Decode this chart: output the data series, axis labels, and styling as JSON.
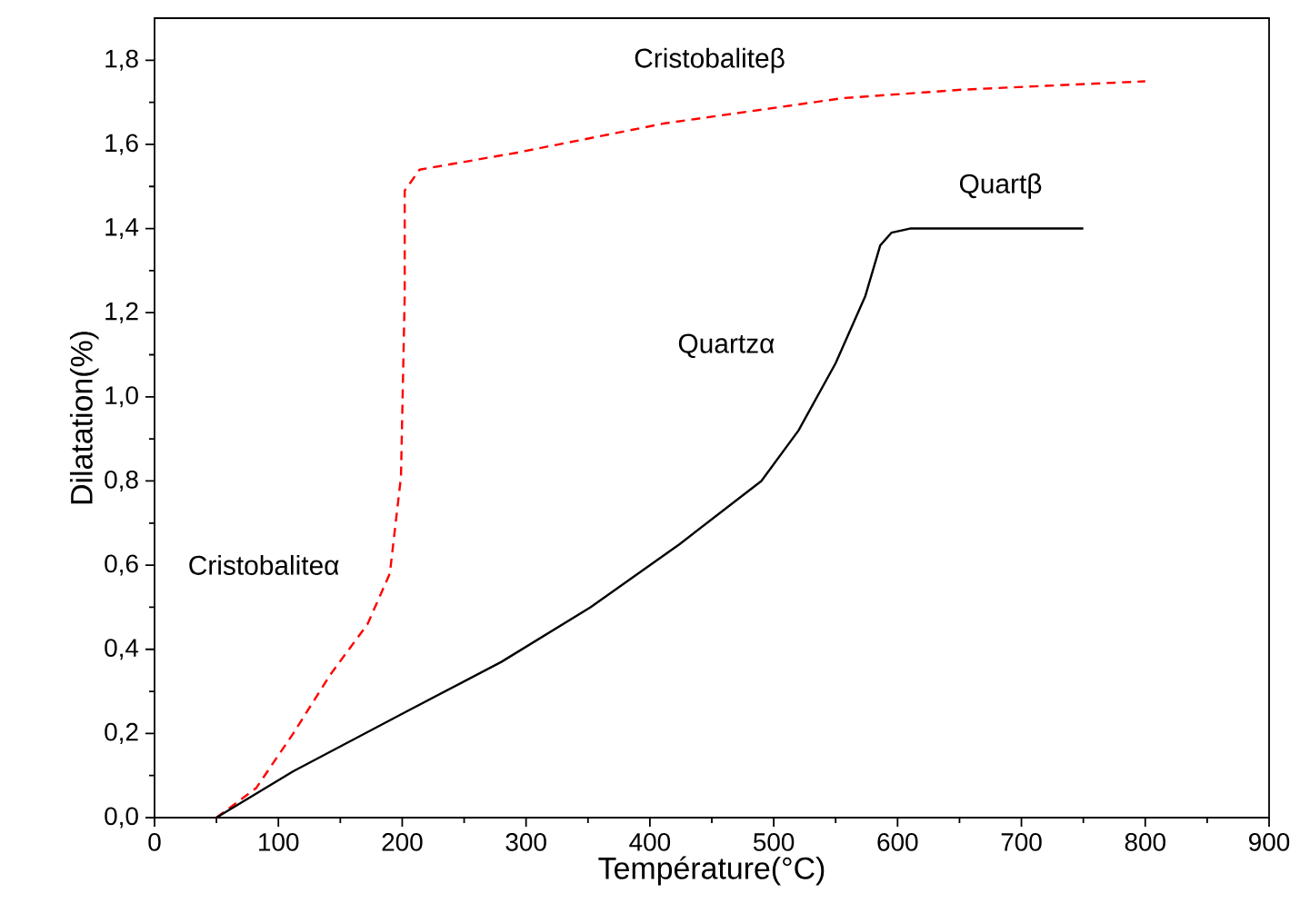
{
  "chart_data": {
    "type": "line",
    "xlabel": "Température(°C)",
    "ylabel": "Dilatation(%)",
    "xlim": [
      0,
      900
    ],
    "ylim": [
      0,
      1.9
    ],
    "xticks": [
      0,
      100,
      200,
      300,
      400,
      500,
      600,
      700,
      800,
      900
    ],
    "yticks": [
      {
        "value": 0,
        "label": "0,0"
      },
      {
        "value": 0.2,
        "label": "0,2"
      },
      {
        "value": 0.4,
        "label": "0,4"
      },
      {
        "value": 0.6,
        "label": "0,6"
      },
      {
        "value": 0.8,
        "label": "0,8"
      },
      {
        "value": 1.0,
        "label": "1,0"
      },
      {
        "value": 1.2,
        "label": "1,2"
      },
      {
        "value": 1.4,
        "label": "1,4"
      },
      {
        "value": 1.6,
        "label": "1,6"
      },
      {
        "value": 1.8,
        "label": "1,8"
      }
    ],
    "grid": false,
    "marker": "none",
    "series": [
      {
        "color": "#ff0000",
        "line_style": "dashed",
        "x": [
          50,
          82,
          112,
          142,
          172,
          190,
          199,
          202,
          202,
          214,
          292,
          412,
          556,
          652,
          800
        ],
        "values": [
          0,
          0.07,
          0.2,
          0.34,
          0.46,
          0.58,
          0.81,
          1.24,
          1.49,
          1.54,
          1.58,
          1.65,
          1.71,
          1.73,
          1.75
        ]
      },
      {
        "color": "#000000",
        "line_style": "solid",
        "x": [
          50,
          112,
          202,
          280,
          352,
          424,
          490,
          520,
          550,
          574,
          586,
          595,
          610,
          750
        ],
        "values": [
          0,
          0.11,
          0.25,
          0.37,
          0.5,
          0.65,
          0.8,
          0.92,
          1.08,
          1.24,
          1.36,
          1.39,
          1.4,
          1.4
        ]
      }
    ],
    "annotations": [
      "Cristobaliteβ",
      "Quartβ",
      "Quartzα",
      "Cristobaliteα"
    ]
  }
}
